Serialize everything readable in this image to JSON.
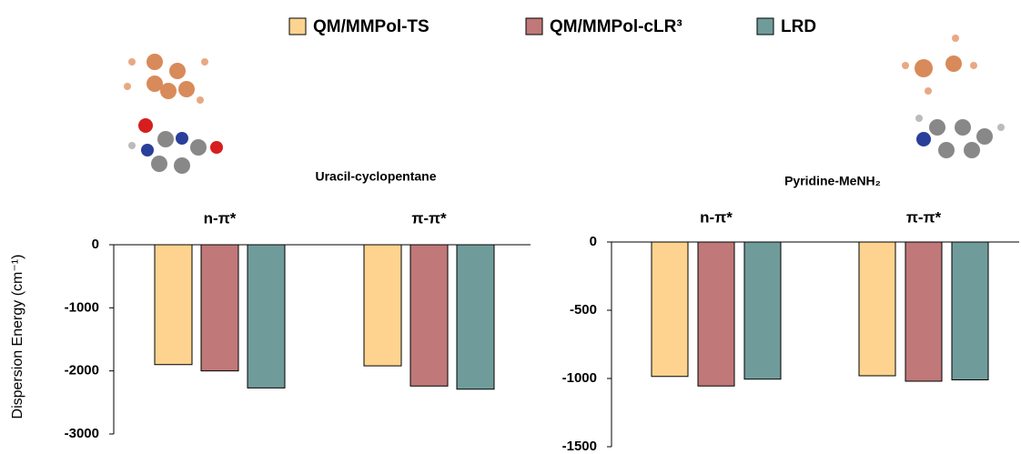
{
  "chart_data": [
    {
      "type": "bar",
      "title": "Uracil-cyclopentane",
      "y_label": "Dispersion Energy (cm⁻¹)",
      "categories": [
        "n-π*",
        "π-π*"
      ],
      "series": [
        {
          "name": "QM/MMPol-TS",
          "color": "#fdd38f",
          "values": [
            -1900,
            -1920
          ]
        },
        {
          "name": "QM/MMPol-cLR³",
          "color": "#c07879",
          "values": [
            -2000,
            -2240
          ]
        },
        {
          "name": "LRD",
          "color": "#6f9c9b",
          "values": [
            -2270,
            -2290
          ]
        }
      ],
      "ylim": [
        -3000,
        0
      ],
      "yticks": [
        0,
        -1000,
        -2000,
        -3000
      ]
    },
    {
      "type": "bar",
      "title": "Pyridine-MeNH₂",
      "categories": [
        "n-π*",
        "π-π*"
      ],
      "series": [
        {
          "name": "QM/MMPol-TS",
          "color": "#fdd38f",
          "values": [
            -985,
            -980
          ]
        },
        {
          "name": "QM/MMPol-cLR³",
          "color": "#c07879",
          "values": [
            -1055,
            -1020
          ]
        },
        {
          "name": "LRD",
          "color": "#6f9c9b",
          "values": [
            -1005,
            -1010
          ]
        }
      ],
      "ylim": [
        -1500,
        0
      ],
      "yticks": [
        0,
        -500,
        -1000,
        -1500
      ]
    }
  ]
}
